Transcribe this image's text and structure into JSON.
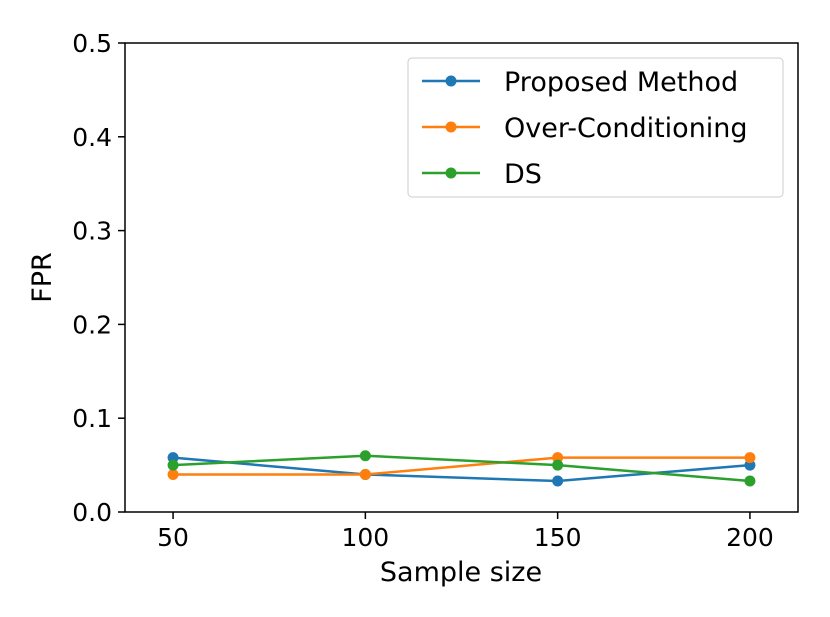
{
  "chart_data": {
    "type": "line",
    "title": "",
    "xlabel": "Sample size",
    "ylabel": "FPR",
    "x": [
      50,
      100,
      150,
      200
    ],
    "xlim": [
      37.5,
      212.5
    ],
    "ylim": [
      0,
      0.5
    ],
    "xticks": [
      "50",
      "100",
      "150",
      "200"
    ],
    "yticks": [
      "0.0",
      "0.1",
      "0.2",
      "0.3",
      "0.4",
      "0.5"
    ],
    "grid": false,
    "legend_position": "top-right",
    "series": [
      {
        "name": "Proposed Method",
        "color": "#1f77b4",
        "values": [
          0.058,
          0.04,
          0.033,
          0.05
        ]
      },
      {
        "name": "Over-Conditioning",
        "color": "#ff7f0e",
        "values": [
          0.04,
          0.04,
          0.058,
          0.058
        ]
      },
      {
        "name": "DS",
        "color": "#2ca02c",
        "values": [
          0.05,
          0.06,
          0.05,
          0.033
        ]
      }
    ]
  }
}
